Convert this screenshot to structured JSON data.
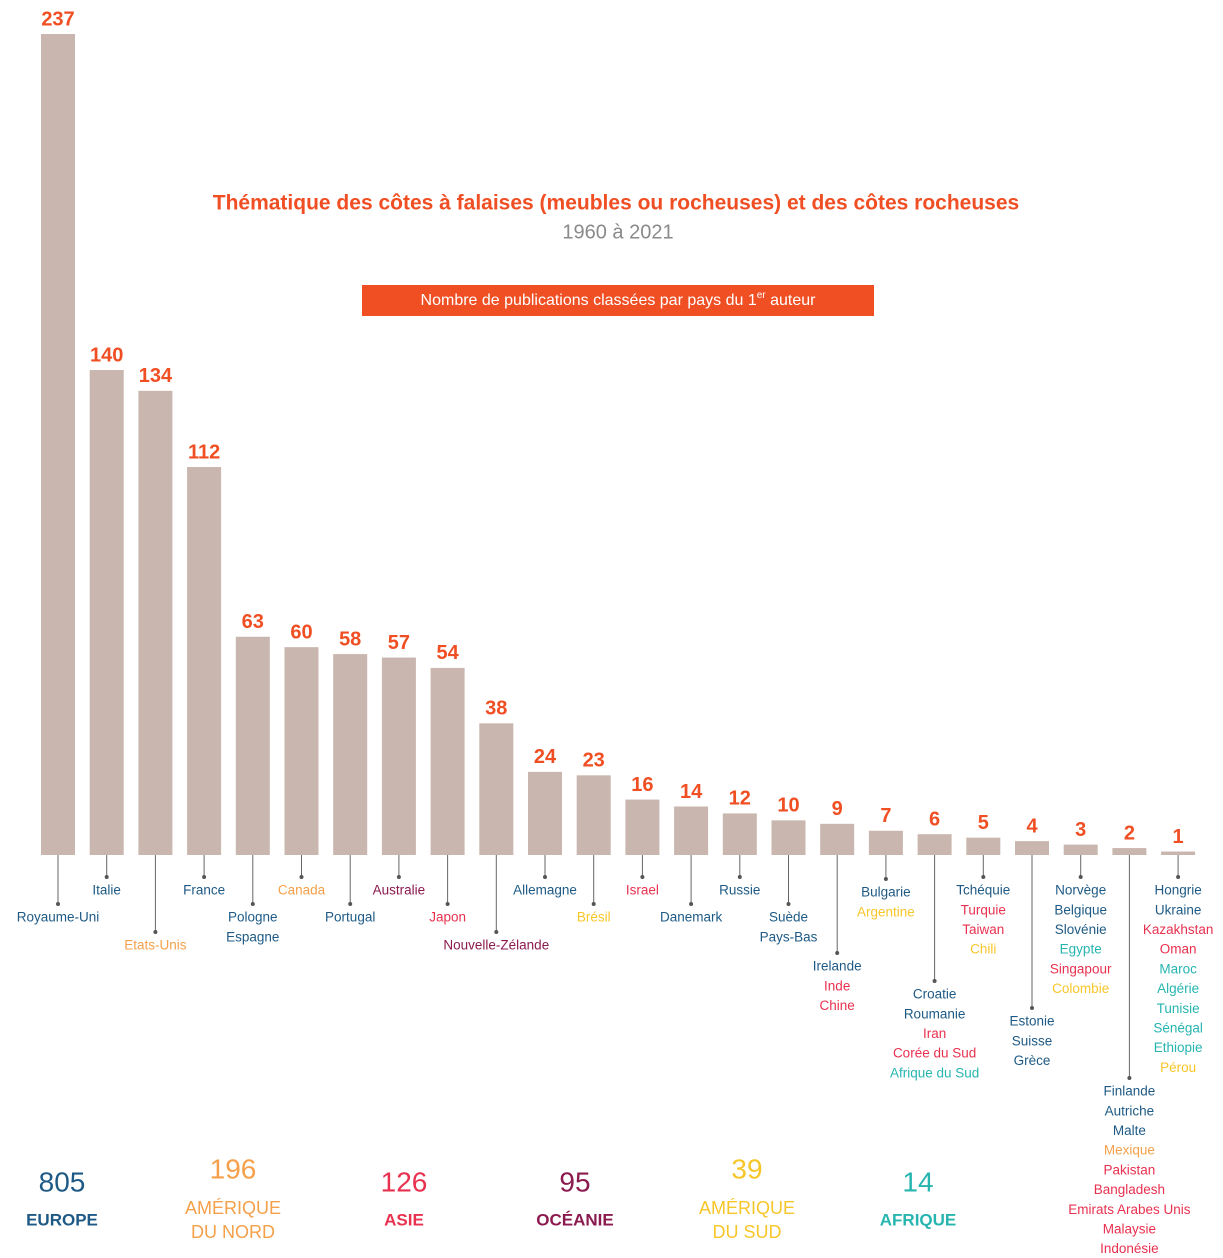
{
  "chart_data": {
    "type": "bar",
    "title": "Thématique des côtes à falaises (meubles ou rocheuses) et des côtes rocheuses",
    "subtitle": "1960 à 2021",
    "box_text": [
      "Nombre de publications classées par pays du 1",
      "er",
      " auteur"
    ],
    "bar_color": "#c9b6ae",
    "label_color": "#f04e23",
    "values": [
      237,
      140,
      134,
      112,
      63,
      60,
      58,
      57,
      54,
      38,
      24,
      23,
      16,
      14,
      12,
      10,
      9,
      7,
      6,
      5,
      4,
      3,
      2,
      1
    ],
    "countries": [
      [
        {
          "name": "Royaume-Uni",
          "color": "#1e5a85"
        }
      ],
      [
        {
          "name": "Italie",
          "color": "#1e5a85"
        }
      ],
      [
        {
          "name": "Etats-Unis",
          "color": "#f5a04a"
        }
      ],
      [
        {
          "name": "France",
          "color": "#1e5a85"
        }
      ],
      [
        {
          "name": "Pologne",
          "color": "#1e5a85"
        },
        {
          "name": "Espagne",
          "color": "#1e5a85"
        }
      ],
      [
        {
          "name": "Canada",
          "color": "#f5a04a"
        }
      ],
      [
        {
          "name": "Portugal",
          "color": "#1e5a85"
        }
      ],
      [
        {
          "name": "Australie",
          "color": "#8b1a4f"
        }
      ],
      [
        {
          "name": "Japon",
          "color": "#e8314f"
        }
      ],
      [
        {
          "name": "Nouvelle-Zélande",
          "color": "#8b1a4f"
        }
      ],
      [
        {
          "name": "Allemagne",
          "color": "#1e5a85"
        }
      ],
      [
        {
          "name": "Brésil",
          "color": "#f7c629"
        }
      ],
      [
        {
          "name": "Israel",
          "color": "#e8314f"
        }
      ],
      [
        {
          "name": "Danemark",
          "color": "#1e5a85"
        }
      ],
      [
        {
          "name": "Russie",
          "color": "#1e5a85"
        }
      ],
      [
        {
          "name": "Suède",
          "color": "#1e5a85"
        },
        {
          "name": "Pays-Bas",
          "color": "#1e5a85"
        }
      ],
      [
        {
          "name": "Irelande",
          "color": "#1e5a85"
        },
        {
          "name": "Inde",
          "color": "#e8314f"
        },
        {
          "name": "Chine",
          "color": "#e8314f"
        }
      ],
      [
        {
          "name": "Bulgarie",
          "color": "#1e5a85"
        },
        {
          "name": "Argentine",
          "color": "#f7c629"
        }
      ],
      [
        {
          "name": "Croatie",
          "color": "#1e5a85"
        },
        {
          "name": "Roumanie",
          "color": "#1e5a85"
        },
        {
          "name": "Iran",
          "color": "#e8314f"
        },
        {
          "name": "Corée du Sud",
          "color": "#e8314f"
        },
        {
          "name": "Afrique du Sud",
          "color": "#27b5b0"
        }
      ],
      [
        {
          "name": "Tchéquie",
          "color": "#1e5a85"
        },
        {
          "name": "Turquie",
          "color": "#e8314f"
        },
        {
          "name": "Taiwan",
          "color": "#e8314f"
        },
        {
          "name": "Chili",
          "color": "#f7c629"
        }
      ],
      [
        {
          "name": "Estonie",
          "color": "#1e5a85"
        },
        {
          "name": "Suisse",
          "color": "#1e5a85"
        },
        {
          "name": "Grèce",
          "color": "#1e5a85"
        }
      ],
      [
        {
          "name": "Norvège",
          "color": "#1e5a85"
        },
        {
          "name": "Belgique",
          "color": "#1e5a85"
        },
        {
          "name": "Slovénie",
          "color": "#1e5a85"
        },
        {
          "name": "Egypte",
          "color": "#27b5b0"
        },
        {
          "name": "Singapour",
          "color": "#e8314f"
        },
        {
          "name": "Colombie",
          "color": "#f7c629"
        }
      ],
      [
        {
          "name": "Finlande",
          "color": "#1e5a85"
        },
        {
          "name": "Autriche",
          "color": "#1e5a85"
        },
        {
          "name": "Malte",
          "color": "#1e5a85"
        },
        {
          "name": "Mexique",
          "color": "#f5a04a"
        },
        {
          "name": "Pakistan",
          "color": "#e8314f"
        },
        {
          "name": "Bangladesh",
          "color": "#e8314f"
        },
        {
          "name": "Emirats Arabes Unis",
          "color": "#e8314f"
        },
        {
          "name": "Malaysie",
          "color": "#e8314f"
        },
        {
          "name": "Indonésie",
          "color": "#e8314f"
        }
      ],
      [
        {
          "name": "Hongrie",
          "color": "#1e5a85"
        },
        {
          "name": "Ukraine",
          "color": "#1e5a85"
        },
        {
          "name": "Kazakhstan",
          "color": "#e8314f"
        },
        {
          "name": "Oman",
          "color": "#e8314f"
        },
        {
          "name": "Maroc",
          "color": "#27b5b0"
        },
        {
          "name": "Algérie",
          "color": "#27b5b0"
        },
        {
          "name": "Tunisie",
          "color": "#27b5b0"
        },
        {
          "name": "Sénégal",
          "color": "#27b5b0"
        },
        {
          "name": "Ethiopie",
          "color": "#27b5b0"
        },
        {
          "name": "Pérou",
          "color": "#f7c629"
        }
      ]
    ],
    "totals": [
      {
        "value": 805,
        "name_lines": [
          "EUROPE"
        ],
        "color": "#1e5a85"
      },
      {
        "value": 196,
        "name_lines": [
          "AMÉRIQUE",
          "DU NORD"
        ],
        "color": "#f5a04a"
      },
      {
        "value": 126,
        "name_lines": [
          "ASIE"
        ],
        "color": "#e8314f"
      },
      {
        "value": 95,
        "name_lines": [
          "OCÉANIE"
        ],
        "color": "#8b1a4f"
      },
      {
        "value": 39,
        "name_lines": [
          "AMÉRIQUE",
          "DU SUD"
        ],
        "color": "#f7c629"
      },
      {
        "value": 14,
        "name_lines": [
          "AFRIQUE"
        ],
        "color": "#27b5b0"
      }
    ]
  }
}
